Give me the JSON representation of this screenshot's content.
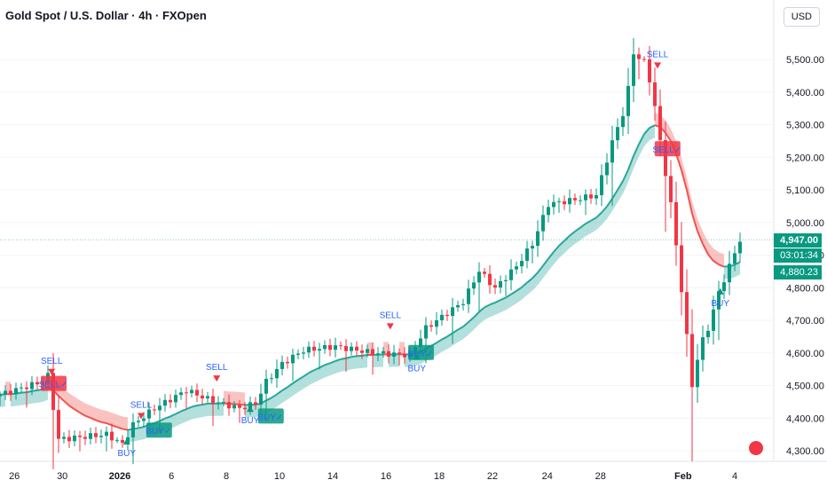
{
  "header": {
    "title": "Gold Spot / U.S. Dollar · 4h · FXOpen",
    "currency": "USD"
  },
  "price_boxes": {
    "last": "4,947.00",
    "countdown": "03:01:34",
    "ma": "4,880.23"
  },
  "colors": {
    "up": "#089981",
    "down": "#f23645",
    "band_up": "#26a69a",
    "band_down": "#ef5350",
    "signal_text": "#2962ff"
  },
  "chart_data": {
    "type": "candlestick",
    "title": "Gold Spot / U.S. Dollar · 4h · FXOpen",
    "ylim": [
      4270,
      5600
    ],
    "yticks": [
      "5,500.00",
      "5,400.00",
      "5,300.00",
      "5,200.00",
      "5,100.00",
      "5,000.00",
      "4,900.00",
      "4,800.00",
      "4,700.00",
      "4,600.00",
      "4,500.00",
      "4,400.00",
      "4,300.00"
    ],
    "ytick_values": [
      5500,
      5400,
      5300,
      5200,
      5100,
      5000,
      4900,
      4800,
      4700,
      4600,
      4500,
      4400,
      4300
    ],
    "xticks": [
      {
        "label": "26",
        "bar": 2.7
      },
      {
        "label": "30",
        "bar": 11.7
      },
      {
        "label": "2026",
        "bar": 22.5
      },
      {
        "label": "6",
        "bar": 32.2
      },
      {
        "label": "8",
        "bar": 42.5
      },
      {
        "label": "10",
        "bar": 52.5
      },
      {
        "label": "14",
        "bar": 62.5
      },
      {
        "label": "16",
        "bar": 72.5
      },
      {
        "label": "18",
        "bar": 82.5
      },
      {
        "label": "22",
        "bar": 92.5
      },
      {
        "label": "24",
        "bar": 102.8
      },
      {
        "label": "28",
        "bar": 112.8
      },
      {
        "label": "Feb",
        "bar": 128.3
      },
      {
        "label": "4",
        "bar": 138
      }
    ],
    "close_path": [
      [
        0,
        4472
      ],
      [
        8,
        4512
      ],
      [
        9,
        4530
      ],
      [
        11,
        4335
      ],
      [
        20,
        4350
      ],
      [
        23,
        4320
      ],
      [
        25,
        4380
      ],
      [
        29,
        4430
      ],
      [
        35,
        4485
      ],
      [
        40,
        4452
      ],
      [
        45,
        4430
      ],
      [
        48,
        4445
      ],
      [
        50,
        4512
      ],
      [
        53,
        4567
      ],
      [
        57,
        4608
      ],
      [
        63,
        4620
      ],
      [
        70,
        4600
      ],
      [
        77,
        4594
      ],
      [
        80,
        4676
      ],
      [
        87,
        4757
      ],
      [
        90,
        4852
      ],
      [
        93,
        4798
      ],
      [
        97,
        4866
      ],
      [
        100,
        4934
      ],
      [
        103,
        5056
      ],
      [
        108,
        5070
      ],
      [
        112,
        5084
      ],
      [
        115,
        5247
      ],
      [
        117.5,
        5356
      ],
      [
        119,
        5519
      ],
      [
        121,
        5492
      ],
      [
        122.5,
        5410
      ],
      [
        124,
        5247
      ],
      [
        126,
        5056
      ],
      [
        127.5,
        4866
      ],
      [
        129,
        4649
      ],
      [
        130,
        4500
      ],
      [
        131.5,
        4622
      ],
      [
        133,
        4676
      ],
      [
        135,
        4785
      ],
      [
        137,
        4866
      ],
      [
        139,
        4947
      ]
    ],
    "signals": [
      {
        "type": "SELL",
        "bar": 9.7,
        "price": 4540,
        "confirm": "SELL✓"
      },
      {
        "type": "SELL",
        "bar": 26.5,
        "price": 4405
      },
      {
        "type": "BUY",
        "bar": 23.8,
        "price": 4330
      },
      {
        "type": "SELL",
        "bar": 40.7,
        "price": 4520,
        "confirm": ""
      },
      {
        "type": "BUY",
        "bar": 47,
        "price": 4430
      },
      {
        "type": "SELL",
        "bar": 73.3,
        "price": 4680
      },
      {
        "type": "BUY",
        "bar": 78.3,
        "price": 4590
      },
      {
        "type": "SELL",
        "bar": 123.5,
        "price": 5480
      },
      {
        "type": "BUY",
        "bar": 135.3,
        "price": 4790
      }
    ],
    "badges": [
      {
        "label": "SELL✓",
        "kind": "sell",
        "bar": 10,
        "price": 4505
      },
      {
        "label": "BUY✓",
        "kind": "buy",
        "bar": 29.8,
        "price": 4362
      },
      {
        "label": "BUY✓",
        "kind": "buy",
        "bar": 50.8,
        "price": 4405
      },
      {
        "label": "BUY✓",
        "kind": "buy",
        "bar": 79,
        "price": 4600
      },
      {
        "label": "SELL✓",
        "kind": "sell",
        "bar": 125.3,
        "price": 5225
      }
    ],
    "last_price": 4947
  }
}
